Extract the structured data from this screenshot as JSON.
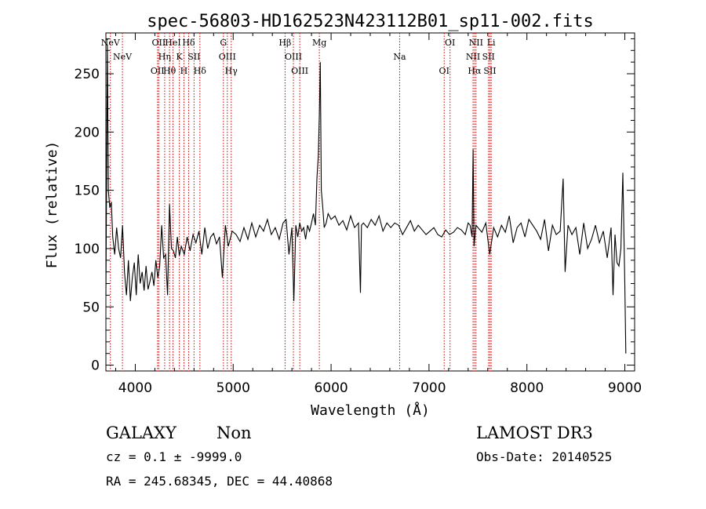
{
  "chart_data": {
    "type": "line",
    "title": "spec-56803-HD162523N423112B01_sp11-002.fits",
    "xlabel": "Wavelength (Å)",
    "ylabel": "Flux (relative)",
    "xlim": [
      3700,
      9100
    ],
    "ylim": [
      -5,
      285
    ],
    "xticks": [
      4000,
      5000,
      6000,
      7000,
      8000,
      9000
    ],
    "yticks": [
      0,
      50,
      100,
      150,
      200,
      250
    ],
    "series": [
      {
        "x": [
          3700,
          3715,
          3725,
          3740,
          3755,
          3770,
          3790,
          3810,
          3830,
          3850,
          3870,
          3890,
          3910,
          3930,
          3950,
          3970,
          3990,
          4010,
          4030,
          4050,
          4070,
          4090,
          4110,
          4130,
          4150,
          4170,
          4190,
          4210,
          4230,
          4250,
          4270,
          4290,
          4310,
          4330,
          4350,
          4370,
          4390,
          4410,
          4430,
          4450,
          4470,
          4500,
          4530,
          4560,
          4590,
          4620,
          4650,
          4680,
          4710,
          4740,
          4770,
          4800,
          4830,
          4860,
          4890,
          4920,
          4950,
          4990,
          5030,
          5070,
          5110,
          5150,
          5190,
          5230,
          5270,
          5310,
          5350,
          5390,
          5430,
          5470,
          5510,
          5540,
          5570,
          5600,
          5620,
          5640,
          5660,
          5680,
          5700,
          5720,
          5740,
          5760,
          5780,
          5800,
          5820,
          5840,
          5855,
          5870,
          5880,
          5890,
          5900,
          5915,
          5930,
          5950,
          5970,
          6000,
          6040,
          6080,
          6120,
          6160,
          6200,
          6240,
          6280,
          6300,
          6310,
          6330,
          6370,
          6410,
          6450,
          6490,
          6530,
          6570,
          6610,
          6650,
          6690,
          6730,
          6770,
          6810,
          6850,
          6890,
          6930,
          6970,
          7010,
          7050,
          7090,
          7130,
          7170,
          7210,
          7250,
          7290,
          7330,
          7370,
          7400,
          7420,
          7440,
          7450,
          7460,
          7480,
          7500,
          7540,
          7580,
          7620,
          7660,
          7700,
          7740,
          7780,
          7820,
          7860,
          7900,
          7940,
          7980,
          8020,
          8060,
          8100,
          8140,
          8180,
          8220,
          8260,
          8300,
          8340,
          8370,
          8390,
          8420,
          8460,
          8500,
          8540,
          8580,
          8620,
          8660,
          8700,
          8740,
          8780,
          8820,
          8860,
          8880,
          8900,
          8920,
          8940,
          8960,
          8980,
          9000,
          9010
        ],
        "y": [
          60,
          275,
          150,
          135,
          140,
          110,
          95,
          118,
          100,
          92,
          120,
          80,
          60,
          90,
          55,
          75,
          88,
          60,
          95,
          70,
          80,
          64,
          85,
          65,
          72,
          80,
          68,
          90,
          75,
          85,
          120,
          92,
          95,
          60,
          138,
          100,
          98,
          92,
          110,
          94,
          102,
          95,
          110,
          98,
          112,
          105,
          115,
          95,
          118,
          100,
          110,
          113,
          104,
          110,
          75,
          120,
          102,
          115,
          112,
          106,
          118,
          108,
          122,
          110,
          120,
          115,
          125,
          112,
          118,
          108,
          122,
          125,
          95,
          118,
          55,
          120,
          110,
          122,
          115,
          118,
          108,
          120,
          115,
          122,
          130,
          120,
          160,
          180,
          215,
          260,
          150,
          135,
          118,
          122,
          130,
          125,
          128,
          120,
          124,
          116,
          128,
          118,
          122,
          62,
          120,
          122,
          118,
          125,
          120,
          128,
          115,
          122,
          118,
          122,
          120,
          112,
          118,
          124,
          115,
          120,
          116,
          112,
          115,
          118,
          112,
          110,
          116,
          112,
          114,
          118,
          116,
          112,
          122,
          120,
          110,
          185,
          102,
          120,
          118,
          114,
          122,
          95,
          118,
          110,
          120,
          114,
          128,
          105,
          118,
          122,
          110,
          125,
          120,
          115,
          108,
          125,
          98,
          120,
          112,
          115,
          160,
          80,
          120,
          112,
          118,
          95,
          122,
          100,
          108,
          120,
          105,
          115,
          92,
          118,
          60,
          112,
          88,
          85,
          100,
          165,
          70,
          10
        ]
      }
    ],
    "lines": [
      {
        "x": 3746,
        "label": "NeV"
      },
      {
        "x": 3869,
        "label": "NeV"
      },
      {
        "x": 4227,
        "label": "OII"
      },
      {
        "x": 4240,
        "label": "OII"
      },
      {
        "x": 4300,
        "label": "Hη"
      },
      {
        "x": 4350,
        "label": "Hθ"
      },
      {
        "x": 4385,
        "label": "HeI"
      },
      {
        "x": 4450,
        "label": "K"
      },
      {
        "x": 4497,
        "label": "H"
      },
      {
        "x": 4545,
        "label": "Hδ"
      },
      {
        "x": 4600,
        "label": "SII"
      },
      {
        "x": 4660,
        "label": "Hδ"
      },
      {
        "x": 4900,
        "label": "G"
      },
      {
        "x": 4940,
        "label": "OIII"
      },
      {
        "x": 4980,
        "label": "Hγ"
      },
      {
        "x": 5530,
        "label": "Hβ"
      },
      {
        "x": 5615,
        "label": "OIII"
      },
      {
        "x": 5680,
        "label": "OIII"
      },
      {
        "x": 5880,
        "label": "Mg"
      },
      {
        "x": 6700,
        "label": "Na"
      },
      {
        "x": 7155,
        "label": "OI"
      },
      {
        "x": 7215,
        "label": "OI"
      },
      {
        "x": 7450,
        "label": "NII"
      },
      {
        "x": 7465,
        "label": "Hα"
      },
      {
        "x": 7480,
        "label": "NII"
      },
      {
        "x": 7608,
        "label": "SII"
      },
      {
        "x": 7622,
        "label": "SII"
      },
      {
        "x": 7635,
        "label": "Li"
      }
    ],
    "line_color": "#cc0000",
    "spectrum_color": "#000000"
  },
  "info": {
    "object_class": "GALAXY",
    "subclass": "Non",
    "survey": "LAMOST DR3",
    "redshift": "cz =  0.1 ± -9999.0",
    "obs_date": "Obs-Date: 20140525",
    "coords": "RA = 245.68345, DEC =  44.40868"
  }
}
